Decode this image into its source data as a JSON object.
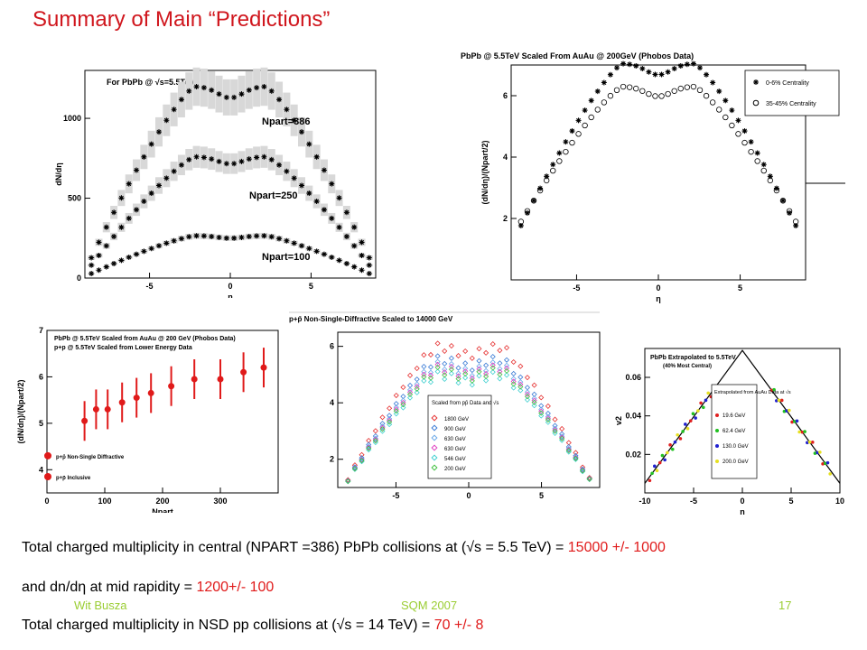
{
  "slide": {
    "title": "Summary of Main “Predictions”",
    "text1_a": "Total charged multiplicity in central (NPART =386) PbPb collisions at (√s = 5.5 TeV) = ",
    "text1_b": "15000 +/- 1000",
    "text2_a": "and dn/dη  at mid rapidity = ",
    "text2_b": "1200+/- 100",
    "text3_a": "Total charged multiplicity in NSD pp collisions at (√s = 14 TeV) = ",
    "text3_b": "70 +/- 8",
    "footer_author": "Wit Busza",
    "footer_conf": "SQM 2007",
    "footer_page": "17"
  },
  "chart_data": [
    {
      "type": "scatter",
      "title": "For PbPb @ √s=5.5TeV",
      "ylabel": "dN/dη",
      "xlabel": "η",
      "xlim": [
        -9,
        9
      ],
      "ylim": [
        0,
        1300
      ],
      "xticks": [
        -5,
        0,
        5
      ],
      "yticks": [
        0,
        500,
        1000
      ],
      "series": [
        {
          "name": "Npart=386",
          "plateau": 1200,
          "edge": 8.6
        },
        {
          "name": "Npart=250",
          "plateau": 760,
          "edge": 8.6
        },
        {
          "name": "Npart=100",
          "plateau": 265,
          "edge": 8.6
        }
      ],
      "labels": [
        "Npart=386",
        "Npart=250",
        "Npart=100"
      ]
    },
    {
      "type": "scatter",
      "title": "PbPb @ 5.5TeV Scaled From AuAu @ 200GeV (Phobos Data)",
      "ylabel": "(dN/dη)/(Npart/2)",
      "xlabel": "η",
      "xlim": [
        -9,
        9
      ],
      "ylim": [
        0,
        7
      ],
      "xticks": [
        -5,
        0,
        5
      ],
      "yticks": [
        2,
        4,
        6
      ],
      "series": [
        {
          "name": "0-6% Centrality",
          "plateau": 6.15,
          "edge": 8.2
        },
        {
          "name": "35-45% Centrality",
          "plateau": 5.4,
          "edge": 8.5
        }
      ]
    },
    {
      "type": "scatter",
      "title": "PbPb @ 5.5TeV Scaled from AuAu @ 200 GeV (Phobos Data)",
      "subtitle": "p+p @ 5.5TeV Scaled from Lower Energy Data",
      "ylabel": "(dN/dη)/(Npart/2)",
      "xlabel": "Npart",
      "xlim": [
        0,
        400
      ],
      "ylim": [
        3.5,
        7
      ],
      "xticks": [
        0,
        100,
        200,
        300
      ],
      "yticks": [
        4,
        5,
        6,
        7
      ],
      "x": [
        65,
        85,
        105,
        130,
        155,
        180,
        215,
        255,
        300,
        340,
        375
      ],
      "y": [
        5.05,
        5.3,
        5.3,
        5.45,
        5.55,
        5.65,
        5.8,
        5.95,
        5.95,
        6.1,
        6.2
      ],
      "pp_points": [
        {
          "label": "p+p̄ Non-Single Diffractive",
          "y": 4.3
        },
        {
          "label": "p+p̄ Inclusive",
          "y": 3.85
        }
      ]
    },
    {
      "type": "scatter",
      "title": "p+p̄ Non-Single-Diffractive Scaled to 14000 GeV",
      "xlim": [
        -9,
        9
      ],
      "ylim": [
        1,
        6.5
      ],
      "xticks": [
        -5,
        0,
        5
      ],
      "yticks": [
        2,
        4,
        6
      ],
      "legend_title": "Scaled from pp̄ Data and √s",
      "series": [
        {
          "name": "1800 GeV",
          "color": "#e53030",
          "plateau": 5.95
        },
        {
          "name": "900 GeV",
          "color": "#3a7bd5",
          "plateau": 5.5
        },
        {
          "name": "630 GeV",
          "color": "#6aa8e8",
          "plateau": 5.3
        },
        {
          "name": "630 GeV",
          "color": "#e040c0",
          "plateau": 5.2
        },
        {
          "name": "546 GeV",
          "color": "#40d0d0",
          "plateau": 4.95
        },
        {
          "name": "200 GeV",
          "color": "#40c040",
          "plateau": 5.1
        }
      ]
    },
    {
      "type": "scatter",
      "title": "PbPb Extrapolated to 5.5TeV",
      "subtitle": "(40% Most Central)",
      "ylabel": "v2",
      "xlabel": "η",
      "xlim": [
        -10,
        10
      ],
      "ylim": [
        0,
        0.075
      ],
      "xticks": [
        -10,
        -5,
        0,
        5,
        10
      ],
      "yticks": [
        0.02,
        0.04,
        0.06
      ],
      "legend_title": "Extrapolated from AuAu Data at √s",
      "series": [
        {
          "name": "19.6 GeV",
          "color": "#e02020"
        },
        {
          "name": "62.4 GeV",
          "color": "#20c020"
        },
        {
          "name": "130.0 GeV",
          "color": "#2020d0"
        },
        {
          "name": "200.0 GeV",
          "color": "#e6e020"
        }
      ]
    }
  ]
}
